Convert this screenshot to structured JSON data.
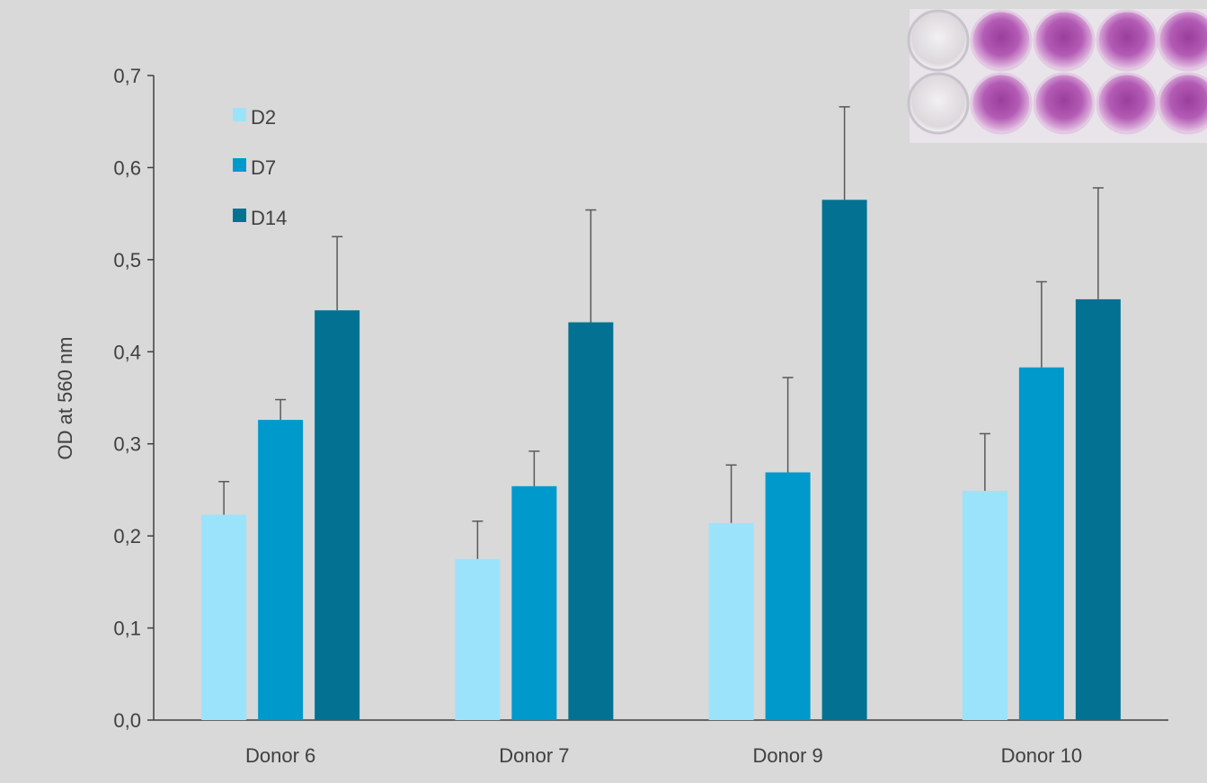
{
  "chart_data": {
    "type": "bar",
    "title": "",
    "xlabel": "",
    "ylabel": "OD at 560 nm",
    "ylim": [
      0,
      0.7
    ],
    "yticks": [
      "0,0",
      "0,1",
      "0,2",
      "0,3",
      "0,4",
      "0,5",
      "0,6",
      "0,7"
    ],
    "categories": [
      "Donor 6",
      "Donor 7",
      "Donor 9",
      "Donor 10"
    ],
    "series": [
      {
        "name": "D2",
        "color": "#9be3fb",
        "values": [
          0.223,
          0.175,
          0.214,
          0.249
        ],
        "errors": [
          0.036,
          0.041,
          0.063,
          0.062
        ]
      },
      {
        "name": "D7",
        "color": "#0099cc",
        "values": [
          0.326,
          0.254,
          0.269,
          0.383
        ],
        "errors": [
          0.022,
          0.038,
          0.103,
          0.093
        ]
      },
      {
        "name": "D14",
        "color": "#037292",
        "values": [
          0.445,
          0.432,
          0.565,
          0.457
        ],
        "errors": [
          0.08,
          0.122,
          0.101,
          0.121
        ]
      }
    ],
    "grid": false,
    "legend": "top-left",
    "error_bar_color": "#595959",
    "inset_image": "microplate-wells-photo"
  }
}
